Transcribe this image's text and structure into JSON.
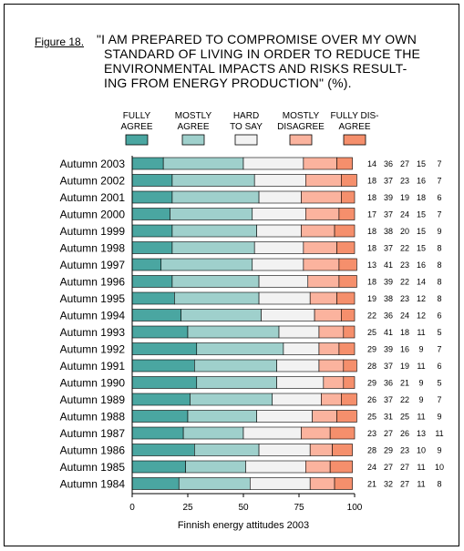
{
  "figure_label": "Figure 18.",
  "title_lines": [
    "\"I AM PREPARED TO COMPROMISE OVER MY OWN",
    "STANDARD OF LIVING IN ORDER TO REDUCE THE",
    "ENVIRONMENTAL IMPACTS AND RISKS RESULT-",
    "ING  FROM ENERGY PRODUCTION\" (%)."
  ],
  "colors": {
    "fully_agree": "#4aa6a1",
    "mostly_agree": "#9fd0cc",
    "hard_to_say": "#f2f2f2",
    "mostly_disagree": "#fbb39e",
    "fully_disagree": "#f58f6c"
  },
  "chart_data": {
    "type": "bar",
    "orientation": "horizontal",
    "stacked": true,
    "xlabel": "Finnish energy attitudes 2003",
    "xlim": [
      0,
      100
    ],
    "xticks": [
      "0",
      "25",
      "50",
      "75",
      "100"
    ],
    "categories": [
      "Autumn 2003",
      "Autumn 2002",
      "Autumn 2001",
      "Autumn 2000",
      "Autumn 1999",
      "Autumn 1998",
      "Autumn 1997",
      "Autumn 1996",
      "Autumn 1995",
      "Autumn 1994",
      "Autumn 1993",
      "Autumn 1992",
      "Autumn 1991",
      "Autumn 1990",
      "Autumn 1989",
      "Autumn 1988",
      "Autumn 1987",
      "Autumn 1986",
      "Autumn 1985",
      "Autumn 1984"
    ],
    "legend": [
      {
        "key": "fully_agree",
        "lines": [
          "FULLY",
          "AGREE"
        ]
      },
      {
        "key": "mostly_agree",
        "lines": [
          "MOSTLY",
          "AGREE"
        ]
      },
      {
        "key": "hard_to_say",
        "lines": [
          "HARD",
          "TO SAY"
        ]
      },
      {
        "key": "mostly_disagree",
        "lines": [
          "MOSTLY",
          "DISAGREE"
        ]
      },
      {
        "key": "fully_disagree",
        "lines": [
          "FULLY DIS-",
          "AGREE"
        ]
      }
    ],
    "series": [
      {
        "key": "fully_agree",
        "values": [
          14,
          18,
          18,
          17,
          18,
          18,
          13,
          18,
          19,
          22,
          25,
          29,
          28,
          29,
          26,
          25,
          23,
          28,
          24,
          21
        ]
      },
      {
        "key": "mostly_agree",
        "values": [
          36,
          37,
          39,
          37,
          38,
          37,
          41,
          39,
          38,
          36,
          41,
          39,
          37,
          36,
          37,
          31,
          27,
          29,
          27,
          32
        ]
      },
      {
        "key": "hard_to_say",
        "values": [
          27,
          23,
          19,
          24,
          20,
          22,
          23,
          22,
          23,
          24,
          18,
          16,
          19,
          21,
          22,
          25,
          26,
          23,
          27,
          27
        ]
      },
      {
        "key": "mostly_disagree",
        "values": [
          15,
          16,
          18,
          15,
          15,
          15,
          16,
          14,
          12,
          12,
          11,
          9,
          11,
          9,
          9,
          11,
          13,
          10,
          11,
          11
        ]
      },
      {
        "key": "fully_disagree",
        "values": [
          7,
          7,
          6,
          7,
          9,
          8,
          8,
          8,
          8,
          6,
          5,
          7,
          6,
          5,
          7,
          9,
          11,
          9,
          10,
          8
        ]
      }
    ]
  }
}
